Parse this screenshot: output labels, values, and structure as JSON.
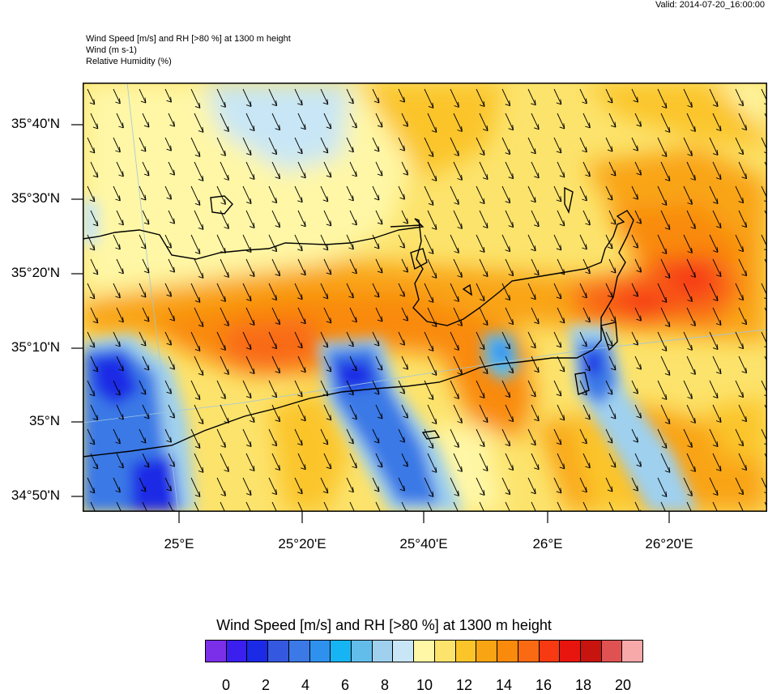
{
  "valid_time": "Valid: 2014-07-20_16:00:00",
  "header": {
    "line1": "Wind Speed [m/s] and RH [>80 %] at 1300 m height",
    "line2": "Wind   (m s-1)",
    "line3": "Relative Humidity   (%)"
  },
  "map": {
    "lat_labels": [
      "35°40'N",
      "35°30'N",
      "35°20'N",
      "35°10'N",
      "35°N",
      "34°50'N"
    ],
    "lon_labels": [
      "25°E",
      "25°20'E",
      "25°40'E",
      "26°E",
      "26°20'E"
    ],
    "wind_direction": "north-northwest"
  },
  "colorbar": {
    "title": "Wind Speed [m/s] and RH [>80 %] at 1300 m height",
    "labels": [
      "0",
      "2",
      "4",
      "6",
      "8",
      "10",
      "12",
      "14",
      "16",
      "18",
      "20"
    ],
    "colors": [
      "#7b2fe8",
      "#3a1fef",
      "#1a2ae6",
      "#3558e0",
      "#3a79e6",
      "#2f91ee",
      "#16b4f2",
      "#63bdea",
      "#9fd0ee",
      "#c8e6f5",
      "#fff7a6",
      "#fce36c",
      "#fbc52a",
      "#f9a412",
      "#f98a0b",
      "#f96a12",
      "#f73a12",
      "#e8150f",
      "#c8140f",
      "#e05252",
      "#f7a9a9"
    ]
  }
}
